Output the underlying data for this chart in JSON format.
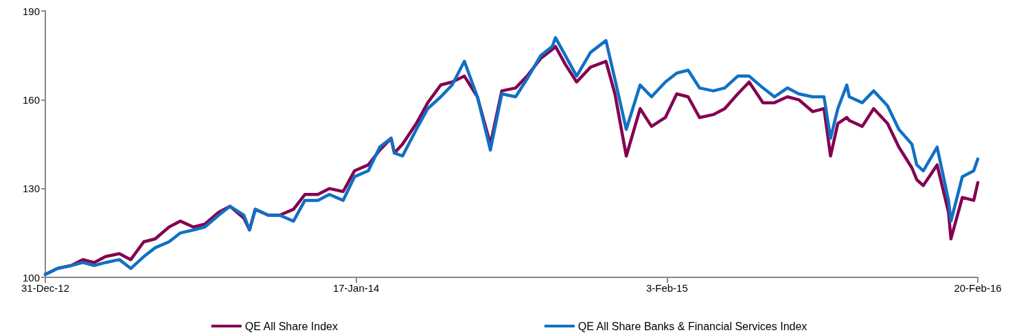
{
  "chart_data": {
    "type": "line",
    "x": [
      "2012-12-31",
      "2013-01-15",
      "2013-02-01",
      "2013-02-15",
      "2013-03-01",
      "2013-03-15",
      "2013-04-01",
      "2013-04-15",
      "2013-05-01",
      "2013-05-15",
      "2013-06-01",
      "2013-06-15",
      "2013-07-01",
      "2013-07-15",
      "2013-08-01",
      "2013-08-15",
      "2013-09-01",
      "2013-09-08",
      "2013-09-15",
      "2013-10-01",
      "2013-10-15",
      "2013-11-01",
      "2013-11-15",
      "2013-12-01",
      "2013-12-15",
      "2014-01-01",
      "2014-01-15",
      "2014-02-01",
      "2014-02-15",
      "2014-03-01",
      "2014-03-05",
      "2014-03-15",
      "2014-04-01",
      "2014-04-15",
      "2014-05-01",
      "2014-05-15",
      "2014-05-30",
      "2014-06-15",
      "2014-07-01",
      "2014-07-15",
      "2014-08-01",
      "2014-08-15",
      "2014-09-01",
      "2014-09-15",
      "2014-09-19",
      "2014-10-01",
      "2014-10-15",
      "2014-11-01",
      "2014-11-20",
      "2014-12-01",
      "2014-12-15",
      "2015-01-01",
      "2015-01-15",
      "2015-02-01",
      "2015-02-15",
      "2015-03-01",
      "2015-03-15",
      "2015-04-01",
      "2015-04-15",
      "2015-05-01",
      "2015-05-15",
      "2015-06-01",
      "2015-06-15",
      "2015-07-01",
      "2015-07-15",
      "2015-08-01",
      "2015-08-15",
      "2015-08-23",
      "2015-09-01",
      "2015-09-12",
      "2015-09-15",
      "2015-10-01",
      "2015-10-15",
      "2015-11-01",
      "2015-11-15",
      "2015-12-01",
      "2015-12-07",
      "2015-12-15",
      "2016-01-01",
      "2016-01-15",
      "2016-01-18",
      "2016-02-01",
      "2016-02-15",
      "2016-02-20"
    ],
    "series": [
      {
        "name": "QE All Share Index",
        "color": "#840050",
        "values": [
          101,
          103,
          104,
          106,
          105,
          107,
          108,
          106,
          112,
          113,
          117,
          119,
          117,
          118,
          122,
          124,
          120,
          116,
          123,
          121,
          121,
          123,
          128,
          128,
          130,
          129,
          136,
          138,
          143,
          147,
          142,
          145,
          152,
          159,
          165,
          166,
          168,
          161,
          145,
          163,
          164,
          168,
          174,
          177,
          178,
          172,
          166,
          171,
          173,
          162,
          141,
          157,
          151,
          154,
          162,
          161,
          154,
          155,
          157,
          162,
          166,
          159,
          159,
          161,
          160,
          156,
          157,
          141,
          152,
          154,
          153,
          151,
          157,
          152,
          144,
          137,
          133,
          131,
          138,
          122,
          113,
          127,
          126,
          132
        ]
      },
      {
        "name": "QE All Share Banks & Financial Services Index",
        "color": "#1170c4",
        "values": [
          101,
          103,
          104,
          105,
          104,
          105,
          106,
          103,
          107,
          110,
          112,
          115,
          116,
          117,
          121,
          124,
          121,
          116,
          123,
          121,
          121,
          119,
          126,
          126,
          128,
          126,
          134,
          136,
          144,
          147,
          142,
          141,
          150,
          157,
          161,
          165,
          173,
          161,
          143,
          162,
          161,
          167,
          175,
          178,
          181,
          175,
          168,
          176,
          180,
          167,
          150,
          165,
          161,
          166,
          169,
          170,
          164,
          163,
          164,
          168,
          168,
          164,
          161,
          164,
          162,
          161,
          161,
          147,
          157,
          165,
          161,
          159,
          163,
          158,
          150,
          145,
          138,
          136,
          144,
          126,
          119,
          134,
          136,
          140
        ]
      }
    ],
    "ylim": [
      100,
      190
    ],
    "yticks": [
      100,
      130,
      160,
      190
    ],
    "xlim": [
      "2012-12-31",
      "2016-02-20"
    ],
    "xticks": [
      {
        "value": "2012-12-31",
        "label": "31-Dec-12"
      },
      {
        "value": "2014-01-17",
        "label": "17-Jan-14"
      },
      {
        "value": "2015-02-03",
        "label": "3-Feb-15"
      },
      {
        "value": "2016-02-20",
        "label": "20-Feb-16"
      }
    ],
    "grid": false,
    "legend": "bottom",
    "marker": "none",
    "line_style": "solid"
  }
}
